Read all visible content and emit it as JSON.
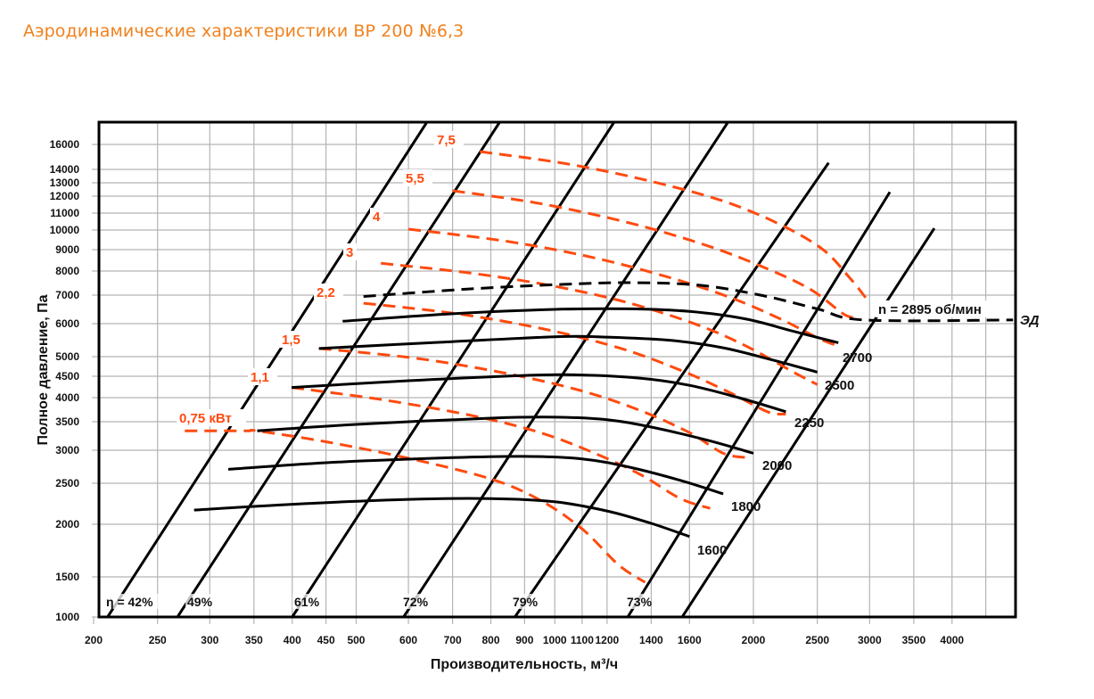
{
  "title": "Аэродинамические характеристики ВР 200 №6,3",
  "colors": {
    "title": "#f0821e",
    "power": "#ff4a0f",
    "speed": "#000000",
    "grid": "#b4b4b4"
  },
  "chart_data": {
    "type": "line",
    "title": "Аэродинамические характеристики ВР 200 №6,3",
    "xlabel": "Производительность, м³/ч",
    "ylabel": "Полное давление, Па",
    "xscale": "log",
    "yscale": "nonlinear",
    "xlim": [
      200,
      5000
    ],
    "ylim": [
      1000,
      18000
    ],
    "grid": true,
    "x_ticks": [
      200,
      250,
      300,
      350,
      400,
      450,
      500,
      600,
      700,
      800,
      900,
      1000,
      1100,
      1200,
      1400,
      1600,
      2000,
      2500,
      3000,
      3500,
      4000
    ],
    "x_tick_labels": [
      "200",
      "250",
      "300",
      "350",
      "400",
      "450",
      "500",
      "600",
      "700",
      "800",
      "900",
      "1000",
      "1100",
      "1200",
      "1400",
      "1600",
      "2000",
      "2500",
      "3000",
      "3500",
      "4000"
    ],
    "y_ticks": [
      1000,
      1500,
      2000,
      2500,
      3000,
      3500,
      4000,
      4500,
      5000,
      6000,
      7000,
      8000,
      9000,
      10000,
      11000,
      12000,
      13000,
      14000,
      16000
    ],
    "y_tick_labels": [
      "1000",
      "1500",
      "2000",
      "2500",
      "3000",
      "3500",
      "4000",
      "4500",
      "5000",
      "6000",
      "7000",
      "8000",
      "9000",
      "10000",
      "11000",
      "12000",
      "13000",
      "14000",
      "16000"
    ],
    "speed_curves": [
      {
        "name": "1600",
        "label": "1600",
        "points": [
          [
            284,
            2160
          ],
          [
            400,
            2230
          ],
          [
            600,
            2290
          ],
          [
            800,
            2300
          ],
          [
            1000,
            2260
          ],
          [
            1200,
            2150
          ],
          [
            1400,
            2010
          ],
          [
            1600,
            1870
          ]
        ]
      },
      {
        "name": "1800",
        "label": "1800",
        "points": [
          [
            320,
            2700
          ],
          [
            450,
            2800
          ],
          [
            700,
            2880
          ],
          [
            900,
            2900
          ],
          [
            1100,
            2860
          ],
          [
            1300,
            2730
          ],
          [
            1550,
            2540
          ],
          [
            1800,
            2360
          ]
        ]
      },
      {
        "name": "2000",
        "label": "2000",
        "points": [
          [
            354,
            3330
          ],
          [
            500,
            3450
          ],
          [
            800,
            3570
          ],
          [
            1000,
            3590
          ],
          [
            1200,
            3540
          ],
          [
            1400,
            3400
          ],
          [
            1700,
            3170
          ],
          [
            2000,
            2950
          ]
        ]
      },
      {
        "name": "2250",
        "label": "2250",
        "points": [
          [
            399,
            4230
          ],
          [
            600,
            4390
          ],
          [
            900,
            4520
          ],
          [
            1100,
            4530
          ],
          [
            1350,
            4450
          ],
          [
            1600,
            4280
          ],
          [
            1900,
            4000
          ],
          [
            2240,
            3700
          ]
        ]
      },
      {
        "name": "2500",
        "label": "2500",
        "points": [
          [
            439,
            5230
          ],
          [
            650,
            5400
          ],
          [
            1000,
            5580
          ],
          [
            1200,
            5570
          ],
          [
            1500,
            5470
          ],
          [
            1800,
            5250
          ],
          [
            2150,
            4900
          ],
          [
            2500,
            4600
          ]
        ]
      },
      {
        "name": "2700",
        "label": "2700",
        "points": [
          [
            477,
            6080
          ],
          [
            700,
            6330
          ],
          [
            1000,
            6480
          ],
          [
            1300,
            6500
          ],
          [
            1600,
            6410
          ],
          [
            1950,
            6150
          ],
          [
            2300,
            5750
          ],
          [
            2690,
            5400
          ]
        ]
      },
      {
        "name": "n = 2895 об/мин",
        "label": "n = 2895 об/мин",
        "dashed": true,
        "points": [
          [
            513,
            6950
          ],
          [
            750,
            7250
          ],
          [
            1050,
            7440
          ],
          [
            1300,
            7500
          ],
          [
            1650,
            7400
          ],
          [
            2050,
            7000
          ],
          [
            2500,
            6500
          ],
          [
            2950,
            6120
          ],
          [
            4950,
            6120
          ]
        ]
      }
    ],
    "power_curves": [
      {
        "name": "0,75 кВт",
        "label": "0,75 кВт",
        "points": [
          [
            275,
            3330
          ],
          [
            340,
            3330
          ],
          [
            354,
            3330
          ],
          [
            450,
            3140
          ],
          [
            600,
            2870
          ],
          [
            800,
            2560
          ],
          [
            950,
            2280
          ],
          [
            1100,
            1950
          ],
          [
            1250,
            1600
          ],
          [
            1370,
            1420
          ]
        ]
      },
      {
        "name": "1,1",
        "label": "1,1",
        "points": [
          [
            399,
            4230
          ],
          [
            550,
            3950
          ],
          [
            750,
            3620
          ],
          [
            950,
            3300
          ],
          [
            1150,
            2950
          ],
          [
            1350,
            2620
          ],
          [
            1550,
            2300
          ],
          [
            1720,
            2180
          ]
        ]
      },
      {
        "name": "1,5",
        "label": "1,5",
        "points": [
          [
            439,
            5230
          ],
          [
            620,
            4950
          ],
          [
            850,
            4560
          ],
          [
            1100,
            4150
          ],
          [
            1350,
            3720
          ],
          [
            1600,
            3300
          ],
          [
            1800,
            2950
          ],
          [
            1960,
            2880
          ]
        ]
      },
      {
        "name": "2,2",
        "label": "2,2",
        "points": [
          [
            513,
            6700
          ],
          [
            700,
            6350
          ],
          [
            950,
            5850
          ],
          [
            1250,
            5250
          ],
          [
            1550,
            4650
          ],
          [
            1850,
            4100
          ],
          [
            2100,
            3700
          ],
          [
            2240,
            3650
          ]
        ]
      },
      {
        "name": "3",
        "label": "3",
        "points": [
          [
            545,
            8350
          ],
          [
            750,
            7900
          ],
          [
            1000,
            7350
          ],
          [
            1300,
            6700
          ],
          [
            1650,
            5950
          ],
          [
            1950,
            5300
          ],
          [
            2300,
            4600
          ],
          [
            2500,
            4300
          ]
        ]
      },
      {
        "name": "4",
        "label": "4",
        "points": [
          [
            600,
            10050
          ],
          [
            850,
            9400
          ],
          [
            1150,
            8600
          ],
          [
            1500,
            7700
          ],
          [
            1850,
            6900
          ],
          [
            2200,
            6150
          ],
          [
            2500,
            5550
          ],
          [
            2690,
            5300
          ]
        ]
      },
      {
        "name": "5,5",
        "label": "5,5",
        "points": [
          [
            700,
            12400
          ],
          [
            950,
            11550
          ],
          [
            1300,
            10400
          ],
          [
            1700,
            9200
          ],
          [
            2100,
            8100
          ],
          [
            2450,
            7200
          ],
          [
            2750,
            6300
          ],
          [
            2900,
            6200
          ]
        ]
      },
      {
        "name": "7,5",
        "label": "7,5",
        "points": [
          [
            770,
            15400
          ],
          [
            1050,
            14400
          ],
          [
            1400,
            13100
          ],
          [
            1800,
            11700
          ],
          [
            2200,
            10300
          ],
          [
            2550,
            9000
          ],
          [
            2800,
            7700
          ],
          [
            2960,
            6900
          ]
        ]
      }
    ],
    "efficiency_lines": [
      {
        "name": "η = 42%",
        "label": "η = 42%",
        "points": [
          [
            210,
            1000
          ],
          [
            640,
            18000
          ]
        ]
      },
      {
        "name": "49%",
        "label": "49%",
        "points": [
          [
            268,
            1000
          ],
          [
            825,
            18000
          ]
        ]
      },
      {
        "name": "61%",
        "label": "61%",
        "points": [
          [
            400,
            1000
          ],
          [
            1230,
            18000
          ]
        ]
      },
      {
        "name": "72%",
        "label": "72%",
        "points": [
          [
            590,
            1000
          ],
          [
            1830,
            18000
          ]
        ]
      },
      {
        "name": "79%",
        "label": "79%",
        "points": [
          [
            870,
            1000
          ],
          [
            2600,
            14500
          ]
        ]
      },
      {
        "name": "73%",
        "label": "73%",
        "points": [
          [
            1290,
            1000
          ],
          [
            3220,
            12300
          ]
        ]
      },
      {
        "name": "edge",
        "label": "",
        "points": [
          [
            1560,
            1000
          ],
          [
            3760,
            10100
          ]
        ]
      }
    ],
    "motor_label": "ЭД"
  }
}
